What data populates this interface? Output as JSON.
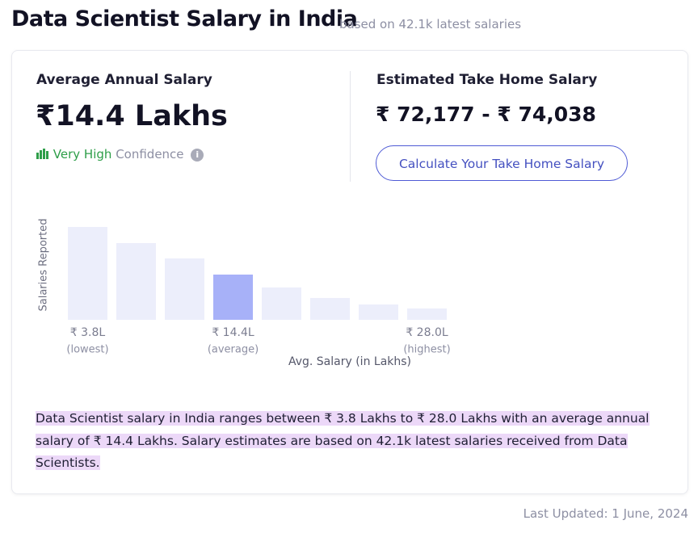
{
  "header": {
    "title": "Data Scientist Salary in India",
    "subtitle": "based on 42.1k latest salaries"
  },
  "average": {
    "label": "Average Annual Salary",
    "value": "₹14.4 Lakhs",
    "confidence_level": "Very High",
    "confidence_text": "Confidence",
    "info_icon": "i"
  },
  "take_home": {
    "label": "Estimated Take Home Salary",
    "value": "₹ 72,177 - ₹ 74,038",
    "button": "Calculate Your Take Home Salary"
  },
  "chart_data": {
    "type": "bar",
    "y_label": "Salaries Reported",
    "x_label": "Avg. Salary (in Lakhs)",
    "categories": [
      "₹ 3.8L",
      null,
      null,
      "₹ 14.4L",
      null,
      null,
      null,
      "₹ 28.0L"
    ],
    "sublabels": [
      "(lowest)",
      null,
      null,
      "(average)",
      null,
      null,
      null,
      "(highest)"
    ],
    "values": [
      115,
      95,
      76,
      56,
      40,
      27,
      19,
      14
    ],
    "colors": [
      "#eceefb",
      "#eceefb",
      "#eceefb",
      "#a7b1f8",
      "#eceefb",
      "#eceefb",
      "#eceefb",
      "#eceefb"
    ],
    "ylim": [
      0,
      120
    ]
  },
  "summary": "Data Scientist salary in India ranges between ₹ 3.8 Lakhs to ₹ 28.0 Lakhs with an average annual salary of ₹ 14.4 Lakhs. Salary estimates are based on 42.1k latest salaries received from Data Scientists.",
  "footer": "Last Updated: 1 June, 2024"
}
